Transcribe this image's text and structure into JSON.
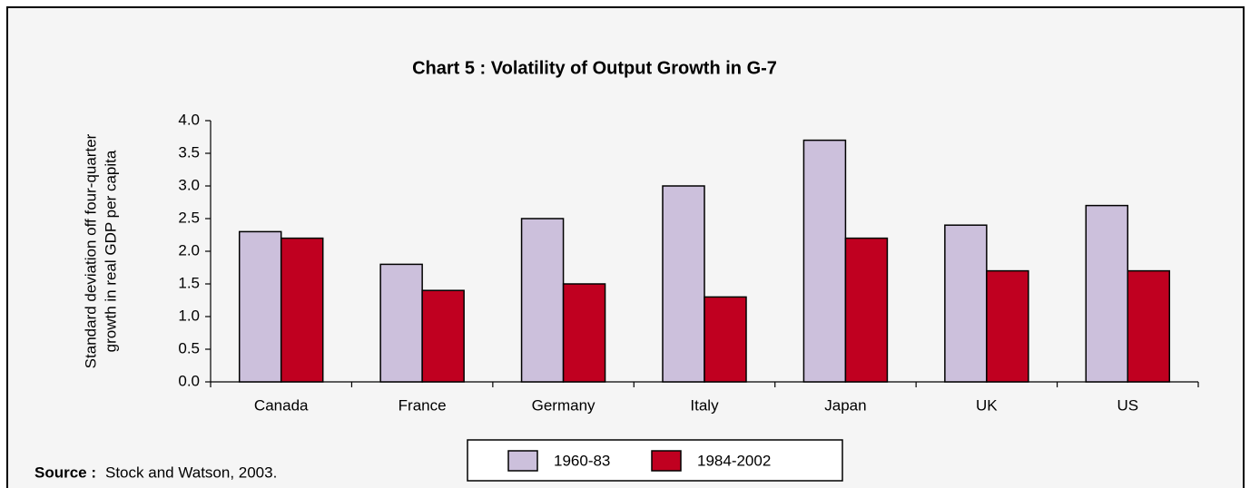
{
  "chart_data": {
    "type": "bar",
    "title": "Chart 5 : Volatility of Output Growth in G-7",
    "y_label": [
      "Standard deviation off four-quarter",
      "growth in real GDP per capita"
    ],
    "categories": [
      "Canada",
      "France",
      "Germany",
      "Italy",
      "Japan",
      "UK",
      "US"
    ],
    "series": [
      {
        "name": "1960-83",
        "color": "#ccc0dc",
        "values": [
          2.3,
          1.8,
          2.5,
          3.0,
          3.7,
          2.4,
          2.7
        ]
      },
      {
        "name": "1984-2002",
        "color": "#c00020",
        "values": [
          2.2,
          1.4,
          1.5,
          1.3,
          2.2,
          1.7,
          1.7
        ]
      }
    ],
    "ylim": [
      0,
      4
    ],
    "yticks": [
      {
        "value": 0,
        "label": "0.0"
      },
      0.5,
      {
        "value": 1,
        "label": "1.0"
      },
      1.5,
      {
        "value": 2,
        "label": "2.0"
      },
      2.5,
      {
        "value": 3,
        "label": "3.0"
      },
      3.5,
      {
        "value": 4,
        "label": "4.0"
      }
    ],
    "legend": "bottom",
    "source_label": "Source :",
    "source": "Stock and Watson, 2003."
  }
}
